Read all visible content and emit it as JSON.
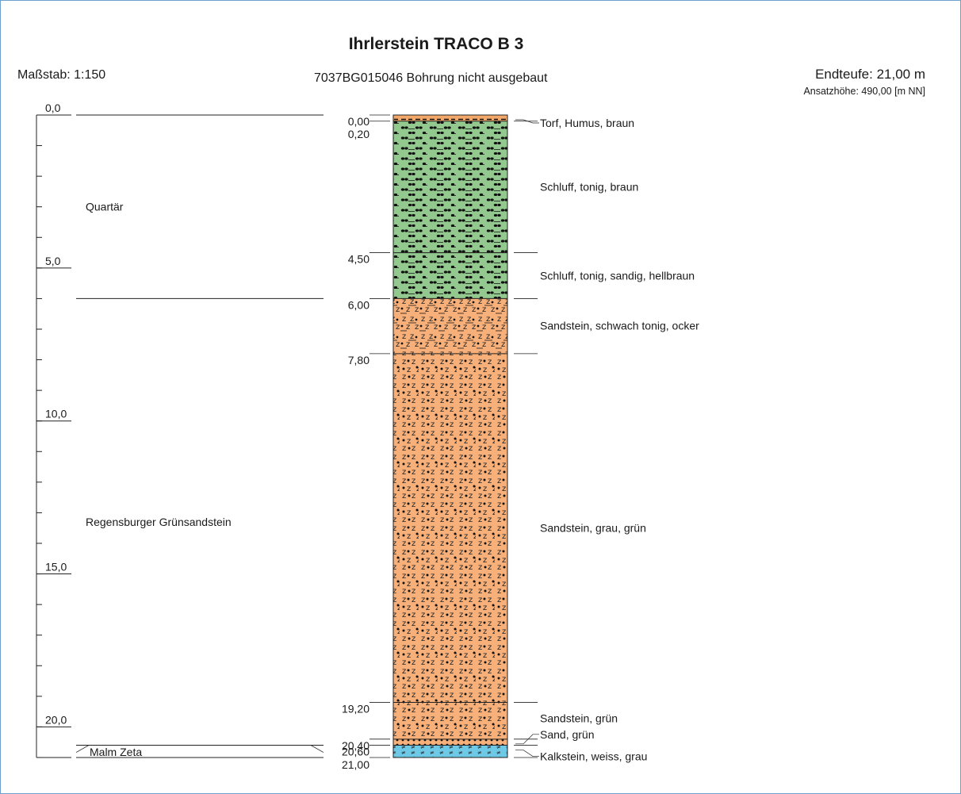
{
  "header": {
    "title": "Ihrlerstein TRACO B 3",
    "scale": "Maßstab: 1:150",
    "subtitle": "7037BG015046   Bohrung nicht ausgebaut",
    "endteufe": "Endteufe: 21,00 m",
    "ansatz": "Ansatzhöhe: 490,00 [m NN]"
  },
  "depth_axis": {
    "min": 0,
    "max": 21,
    "tick_step": 1,
    "labels": [
      {
        "value": 0,
        "text": "0,0"
      },
      {
        "value": 5,
        "text": "5,0"
      },
      {
        "value": 10,
        "text": "10,0"
      },
      {
        "value": 15,
        "text": "15,0"
      },
      {
        "value": 20,
        "text": "20,0"
      }
    ]
  },
  "stratigraphy": [
    {
      "name": "Quartär",
      "from": 0,
      "to": 6.0
    },
    {
      "name": "Regensburger Grünsandstein",
      "from": 6.0,
      "to": 20.6
    },
    {
      "name": "Malm Zeta",
      "from": 20.6,
      "to": 21.0
    }
  ],
  "layers": [
    {
      "from": 0.0,
      "to": 0.2,
      "from_label": "0,00",
      "description": "Torf, Humus,  braun",
      "color": "#f2a86b",
      "pattern": "peat"
    },
    {
      "from": 0.2,
      "to": 4.5,
      "from_label": "0,20",
      "description": "Schluff, tonig,  braun",
      "color": "#93c98e",
      "pattern": "silt"
    },
    {
      "from": 4.5,
      "to": 6.0,
      "from_label": "4,50",
      "description": "Schluff, tonig, sandig,  hellbraun",
      "color": "#93c98e",
      "pattern": "silt"
    },
    {
      "from": 6.0,
      "to": 7.8,
      "from_label": "6,00",
      "description": "Sandstein, schwach tonig,  ocker",
      "color": "#f7b07a",
      "pattern": "sandstone-clay"
    },
    {
      "from": 7.8,
      "to": 19.2,
      "from_label": "7,80",
      "description": "Sandstein,  grau, grün",
      "color": "#f7b07a",
      "pattern": "sandstone"
    },
    {
      "from": 19.2,
      "to": 20.4,
      "from_label": "19,20",
      "description": "Sandstein,  grün",
      "color": "#f7b07a",
      "pattern": "sandstone"
    },
    {
      "from": 20.4,
      "to": 20.6,
      "from_label": "20,40",
      "description": "Sand,  grün",
      "color": "#f7b07a",
      "pattern": "sand"
    },
    {
      "from": 20.6,
      "to": 21.0,
      "from_label": "20,60",
      "description": "Kalkstein,  weiss, grau",
      "color": "#6ec9e6",
      "pattern": "limestone"
    }
  ],
  "bottom_label": "21,00"
}
